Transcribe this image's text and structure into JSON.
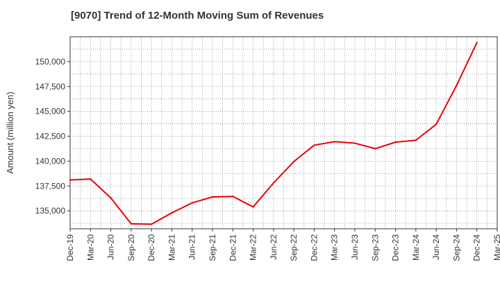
{
  "chart_data": {
    "type": "line",
    "title": "[9070]  Trend of 12-Month Moving Sum of Revenues",
    "xlabel": "",
    "ylabel": "Amount (million yen)",
    "x_tick_labels": [
      "Dec-19",
      "Mar-20",
      "Jun-20",
      "Sep-20",
      "Dec-20",
      "Mar-21",
      "Jun-21",
      "Sep-21",
      "Dec-21",
      "Mar-22",
      "Jun-22",
      "Sep-22",
      "Dec-22",
      "Mar-23",
      "Jun-23",
      "Sep-23",
      "Dec-23",
      "Mar-24",
      "Jun-24",
      "Sep-24",
      "Dec-24",
      "Mar-25"
    ],
    "y_tick_labels": [
      "135,000",
      "137,500",
      "140,000",
      "142,500",
      "145,000",
      "147,500",
      "150,000"
    ],
    "y_ticks": [
      135000,
      137500,
      140000,
      142500,
      145000,
      147500,
      150000
    ],
    "ylim": [
      133200,
      152500
    ],
    "grid": true,
    "series": [
      {
        "color": "#e8000b",
        "x": [
          "Dec-19",
          "Mar-20",
          "Jun-20",
          "Sep-20",
          "Dec-20",
          "Mar-21",
          "Jun-21",
          "Sep-21",
          "Dec-21",
          "Mar-22",
          "Jun-22",
          "Sep-22",
          "Dec-22",
          "Mar-23",
          "Jun-23",
          "Sep-23",
          "Dec-23",
          "Mar-24",
          "Jun-24",
          "Sep-24",
          "Dec-24"
        ],
        "values": [
          138100,
          138200,
          136300,
          133700,
          133650,
          134800,
          135800,
          136400,
          136450,
          135400,
          137800,
          139950,
          141600,
          141950,
          141800,
          141250,
          141900,
          142100,
          143700,
          147600,
          151900
        ]
      }
    ]
  }
}
